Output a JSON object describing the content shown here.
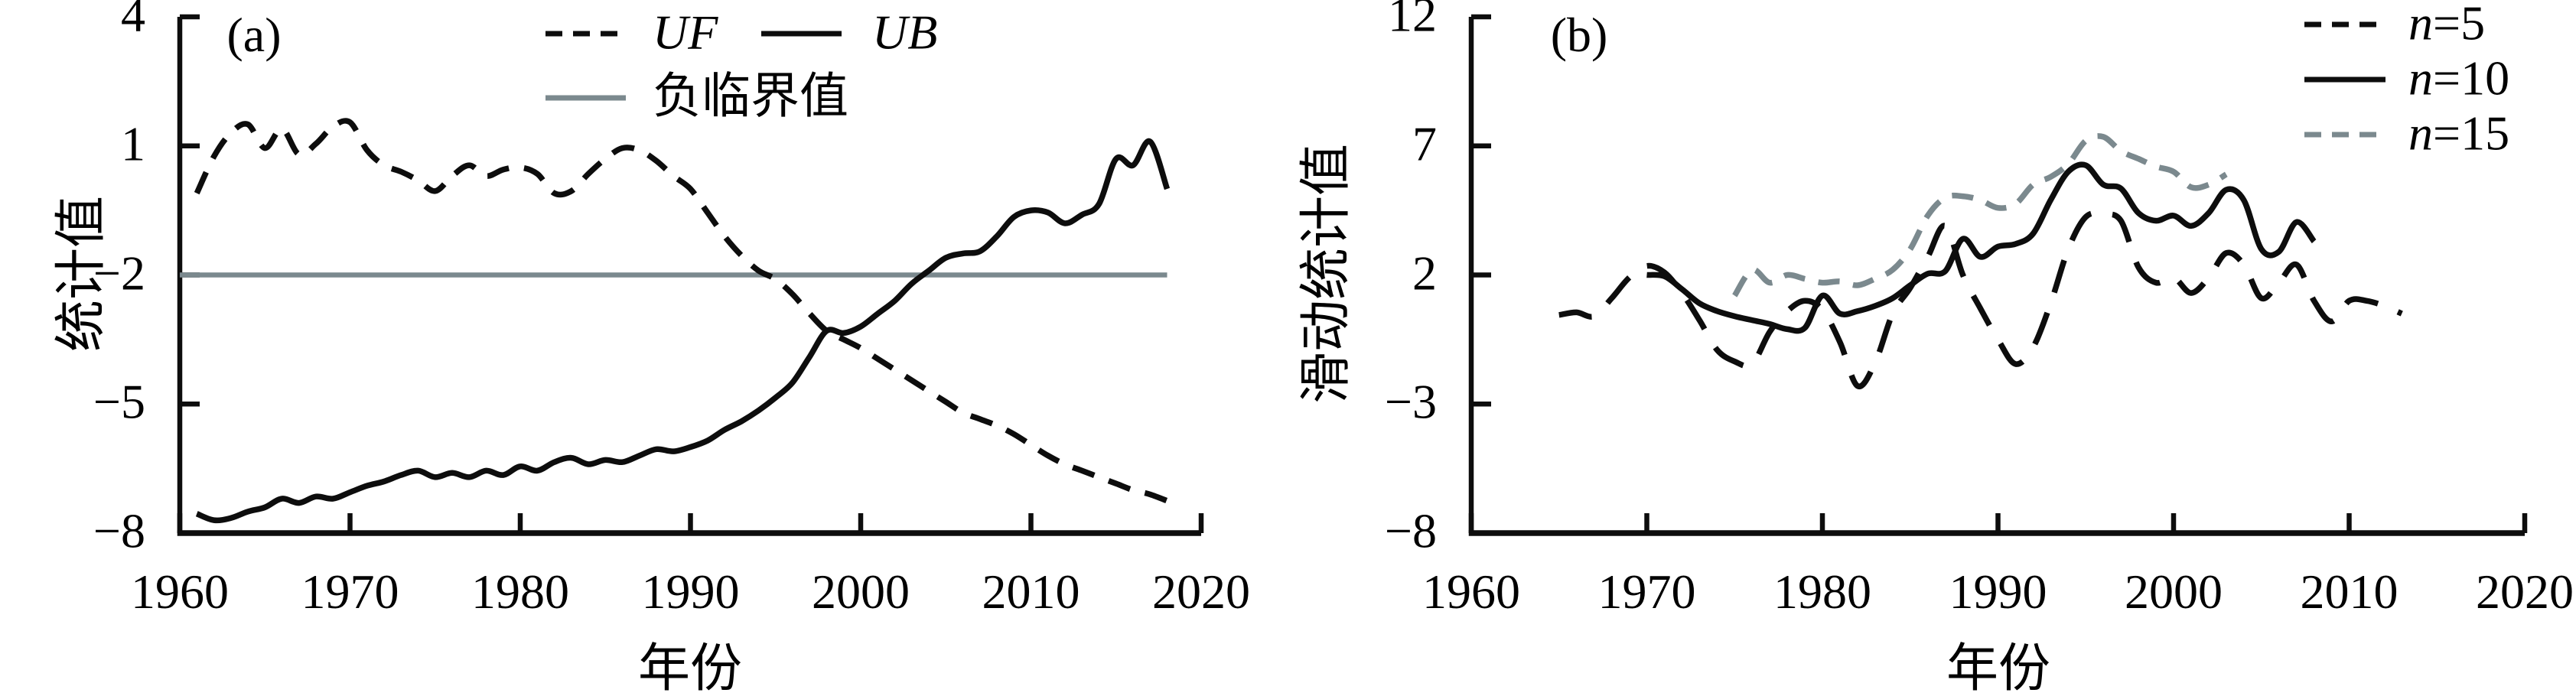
{
  "figure": {
    "background": "#ffffff",
    "ink_color": "#0d0d0d",
    "accent_gray": "#7b898e"
  },
  "panel_a": {
    "tag": "(a)",
    "ylabel": "统计值",
    "xlabel": "年份",
    "legend": {
      "uf": "UF",
      "ub": "UB",
      "critical": "负临界值"
    }
  },
  "panel_b": {
    "tag": "(b)",
    "ylabel": "滑动统计值",
    "xlabel": "年份",
    "legend": [
      {
        "it": "n",
        "rest": "=5"
      },
      {
        "it": "n",
        "rest": "=10"
      },
      {
        "it": "n",
        "rest": "=15"
      }
    ]
  },
  "chart_data": [
    {
      "type": "line",
      "panel": "a",
      "title": "(a)",
      "xlabel": "年份",
      "ylabel": "统计值",
      "xlim": [
        1960,
        2020
      ],
      "ylim": [
        -8,
        4
      ],
      "x_ticks": [
        1960,
        1970,
        1980,
        1990,
        2000,
        2010,
        2020
      ],
      "y_ticks": [
        4,
        1,
        -2,
        -5,
        -8
      ],
      "grid": false,
      "legend_position": "top-center",
      "critical_line": {
        "name": "负临界值",
        "value": -2,
        "color": "#7b898e",
        "year_start": 1960,
        "year_end": 2018
      },
      "series": [
        {
          "name": "UF",
          "style": "dashed",
          "color": "#0d0d0d",
          "year_start": 1961,
          "year_step": 1,
          "values": [
            -0.1,
            0.75,
            1.3,
            1.5,
            0.95,
            1.4,
            0.8,
            1.05,
            1.45,
            1.55,
            0.9,
            0.55,
            0.4,
            0.2,
            -0.05,
            0.3,
            0.55,
            0.3,
            0.45,
            0.5,
            0.35,
            -0.1,
            -0.05,
            0.35,
            0.7,
            0.95,
            0.9,
            0.65,
            0.3,
            0.0,
            -0.55,
            -1.1,
            -1.55,
            -1.9,
            -2.1,
            -2.45,
            -2.9,
            -3.3,
            -3.5,
            -3.7,
            -3.95,
            -4.2,
            -4.45,
            -4.7,
            -4.95,
            -5.2,
            -5.35,
            -5.5,
            -5.7,
            -5.95,
            -6.2,
            -6.4,
            -6.55,
            -6.7,
            -6.85,
            -7.0,
            -7.1,
            -7.25
          ]
        },
        {
          "name": "UB",
          "style": "solid",
          "color": "#0d0d0d",
          "year_start": 1961,
          "year_step": 1,
          "values": [
            -7.55,
            -7.7,
            -7.65,
            -7.5,
            -7.4,
            -7.2,
            -7.3,
            -7.15,
            -7.2,
            -7.05,
            -6.9,
            -6.8,
            -6.65,
            -6.55,
            -6.7,
            -6.6,
            -6.7,
            -6.55,
            -6.65,
            -6.45,
            -6.55,
            -6.35,
            -6.25,
            -6.4,
            -6.3,
            -6.35,
            -6.2,
            -6.05,
            -6.1,
            -6.0,
            -5.85,
            -5.6,
            -5.4,
            -5.15,
            -4.85,
            -4.5,
            -3.9,
            -3.3,
            -3.35,
            -3.2,
            -2.9,
            -2.6,
            -2.2,
            -1.9,
            -1.6,
            -1.5,
            -1.45,
            -1.1,
            -0.65,
            -0.5,
            -0.55,
            -0.8,
            -0.6,
            -0.35,
            0.7,
            0.55,
            1.1,
            0.0
          ]
        }
      ]
    },
    {
      "type": "line",
      "panel": "b",
      "title": "(b)",
      "xlabel": "年份",
      "ylabel": "滑动统计值",
      "xlim": [
        1960,
        2020
      ],
      "ylim": [
        -8,
        12
      ],
      "x_ticks": [
        1960,
        1970,
        1980,
        1990,
        2000,
        2010,
        2020
      ],
      "y_ticks": [
        12,
        7,
        2,
        -3,
        -8
      ],
      "grid": false,
      "legend_position": "top-right",
      "series": [
        {
          "name": "n=5",
          "style": "dashed",
          "color": "#0d0d0d",
          "year_start": 1965,
          "year_step": 1,
          "values": [
            0.45,
            0.55,
            0.4,
            1.1,
            1.9,
            2.35,
            2.1,
            1.3,
            0.25,
            -0.9,
            -1.35,
            -1.45,
            -0.2,
            0.6,
            1.0,
            0.65,
            -0.6,
            -2.3,
            -1.4,
            0.5,
            1.5,
            2.7,
            3.9,
            2.0,
            0.7,
            -0.5,
            -1.45,
            -0.8,
            0.9,
            3.0,
            4.25,
            4.35,
            4.1,
            2.3,
            1.7,
            1.9,
            1.3,
            1.9,
            2.85,
            2.4,
            1.1,
            1.7,
            2.4,
            1.0,
            0.2,
            1.0,
            1.0,
            0.8,
            0.5
          ]
        },
        {
          "name": "n=10",
          "style": "solid",
          "color": "#0d0d0d",
          "year_start": 1970,
          "year_step": 1,
          "values": [
            2.0,
            1.95,
            1.45,
            0.9,
            0.6,
            0.4,
            0.25,
            0.1,
            -0.1,
            -0.05,
            1.2,
            0.5,
            0.6,
            0.8,
            1.1,
            1.6,
            2.05,
            2.15,
            3.4,
            2.7,
            3.1,
            3.2,
            3.6,
            4.9,
            6.0,
            6.25,
            5.5,
            5.35,
            4.4,
            4.1,
            4.3,
            3.9,
            4.4,
            5.3,
            4.9,
            3.0,
            2.9,
            4.05,
            3.3
          ]
        },
        {
          "name": "n=15",
          "style": "dashed",
          "color": "#7b898e",
          "year_start": 1975,
          "year_step": 1,
          "values": [
            1.2,
            2.2,
            1.7,
            2.0,
            1.85,
            1.7,
            1.75,
            1.6,
            1.85,
            2.2,
            3.0,
            4.3,
            5.0,
            5.05,
            4.9,
            4.6,
            4.75,
            5.5,
            5.8,
            6.3,
            7.2,
            7.35,
            6.8,
            6.5,
            6.2,
            6.0,
            5.4,
            5.5,
            5.9
          ]
        }
      ]
    }
  ]
}
